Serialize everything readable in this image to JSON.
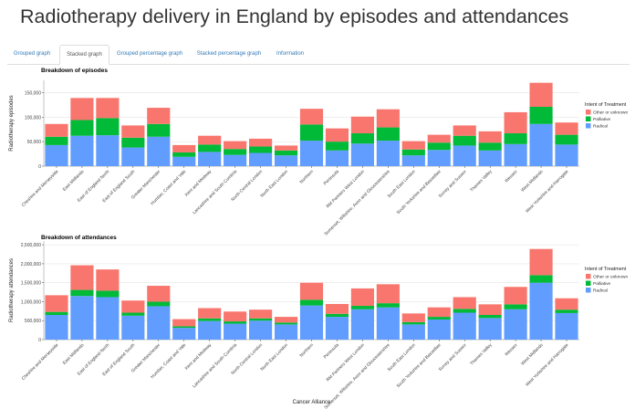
{
  "page": {
    "title": "Radiotherapy delivery in England by episodes and attendances"
  },
  "tabs": [
    {
      "label": "Grouped graph",
      "active": false
    },
    {
      "label": "Stacked graph",
      "active": true
    },
    {
      "label": "Grouped percentage graph",
      "active": false
    },
    {
      "label": "Stacked percentage graph",
      "active": false
    },
    {
      "label": "Information",
      "active": false
    }
  ],
  "colors": {
    "radical": "#619cff",
    "palliative": "#00ba38",
    "other": "#f8766d",
    "accent": "#337ab7"
  },
  "chart_data": [
    {
      "type": "bar",
      "stacked": true,
      "title": "Breakdown of episodes",
      "xlabel": "",
      "ylabel": "Radiotherapy episodes",
      "ylim": [
        0,
        175000
      ],
      "yticks": [
        0,
        50000,
        100000,
        150000
      ],
      "ytick_labels": [
        "0",
        "50,000",
        "100,000",
        "150,000"
      ],
      "grid": true,
      "legend_title": "Intent of Treatment",
      "legend_position": "right",
      "categories": [
        "Cheshire and Merseyside",
        "East Midlands",
        "East of England North",
        "East of England South",
        "Greater Manchester",
        "Humber, Coast and Vale",
        "Kent and Medway",
        "Lancashire and South Cumbria",
        "North Central London",
        "North East London",
        "Northern",
        "Peninsula",
        "RM Partners West London",
        "Somerset, Wiltshire, Avon and Gloucestershire",
        "South East London",
        "South Yorkshire and Bassetlaw",
        "Surrey and Sussex",
        "Thames Valley",
        "Wessex",
        "West Midlands",
        "West Yorkshire and Harrogate"
      ],
      "series": [
        {
          "name": "Radical",
          "values": [
            43000,
            62000,
            63000,
            38000,
            60000,
            19000,
            29000,
            23000,
            27000,
            22000,
            52000,
            32000,
            46000,
            52000,
            22000,
            33000,
            42000,
            32000,
            45000,
            86000,
            44000
          ]
        },
        {
          "name": "Palliative",
          "values": [
            17000,
            32000,
            35000,
            20000,
            26000,
            9000,
            15000,
            12000,
            13000,
            10000,
            33000,
            18000,
            21000,
            27000,
            12000,
            15000,
            20000,
            16000,
            22000,
            35000,
            20000
          ]
        },
        {
          "name": "Other or unknown",
          "values": [
            26000,
            45000,
            41000,
            25000,
            33000,
            15000,
            18000,
            16000,
            16000,
            10000,
            32000,
            27000,
            34000,
            37000,
            17000,
            16000,
            21000,
            23000,
            43000,
            49000,
            25000
          ]
        }
      ]
    },
    {
      "type": "bar",
      "stacked": true,
      "title": "Breakdown of attendances",
      "xlabel": "Cancer Alliance",
      "ylabel": "Radiotherapy attendances",
      "ylim": [
        0,
        2600000
      ],
      "yticks": [
        0,
        500000,
        1000000,
        1500000,
        2000000,
        2500000
      ],
      "ytick_labels": [
        "0",
        "500,000",
        "1,000,000",
        "1,500,000",
        "2,000,000",
        "2,500,000"
      ],
      "grid": true,
      "legend_title": "Intent of Treatment",
      "legend_position": "right",
      "categories": [
        "Cheshire and Merseyside",
        "East Midlands",
        "East of England North",
        "East of England South",
        "Greater Manchester",
        "Humber, Coast and Vale",
        "Kent and Medway",
        "Lancashire and South Cumbria",
        "North Central London",
        "North East London",
        "Northern",
        "Peninsula",
        "RM Partners West London",
        "Somerset, Wiltshire, Avon and Gloucestershire",
        "South East London",
        "South Yorkshire and Bassetlaw",
        "Surrey and Sussex",
        "Thames Valley",
        "Wessex",
        "West Midlands",
        "West Yorkshire and Harrogate"
      ],
      "series": [
        {
          "name": "Radical",
          "values": [
            650000,
            1150000,
            1120000,
            630000,
            880000,
            310000,
            490000,
            420000,
            500000,
            400000,
            900000,
            600000,
            800000,
            850000,
            400000,
            530000,
            710000,
            570000,
            800000,
            1500000,
            700000
          ]
        },
        {
          "name": "Palliative",
          "values": [
            80000,
            160000,
            170000,
            80000,
            120000,
            40000,
            70000,
            60000,
            60000,
            50000,
            150000,
            80000,
            90000,
            110000,
            60000,
            70000,
            100000,
            80000,
            130000,
            200000,
            90000
          ]
        },
        {
          "name": "Other or unknown",
          "values": [
            440000,
            650000,
            560000,
            320000,
            420000,
            190000,
            270000,
            260000,
            230000,
            150000,
            450000,
            260000,
            460000,
            500000,
            230000,
            250000,
            310000,
            280000,
            460000,
            690000,
            300000
          ]
        }
      ]
    }
  ]
}
